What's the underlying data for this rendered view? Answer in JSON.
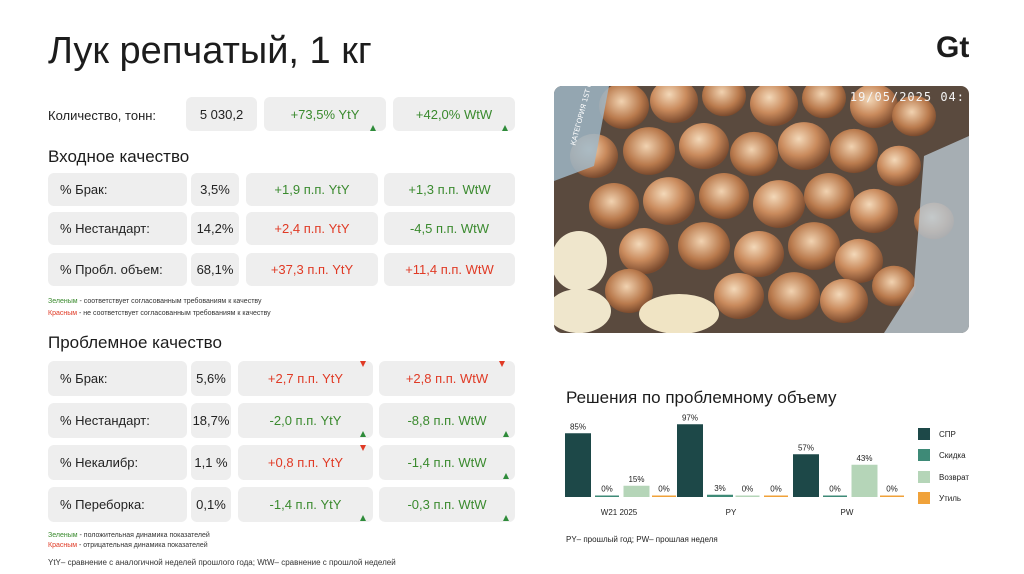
{
  "title": "Лук репчатый, 1 кг",
  "logo_text": "Gt",
  "quantity": {
    "label": "Количество, тонн:",
    "value": "5 030,2",
    "yty": "+73,5% YtY",
    "wtw": "+42,0% WtW",
    "yty_dir": "up",
    "wtw_dir": "up"
  },
  "incoming": {
    "title": "Входное качество",
    "rows": [
      {
        "label": "% Брак:",
        "value": "3,5%",
        "yty": "+1,9 п.п. YtY",
        "wtw": "+1,3 п.п. WtW",
        "yty_color": "green",
        "wtw_color": "green"
      },
      {
        "label": "% Нестандарт:",
        "value": "14,2%",
        "yty": "+2,4 п.п. YtY",
        "wtw": "-4,5 п.п. WtW",
        "yty_color": "red",
        "wtw_color": "green"
      },
      {
        "label": "% Пробл. объем:",
        "value": "68,1%",
        "yty": "+37,3 п.п. YtY",
        "wtw": "+11,4 п.п. WtW",
        "yty_color": "red",
        "wtw_color": "red"
      }
    ],
    "note_green_word": "Зеленым",
    "note_green_text": " - соответствует согласованным требованиям к качеству",
    "note_red_word": "Красным",
    "note_red_text": " - не соответствует согласованным требованиям к качеству"
  },
  "problem": {
    "title": "Проблемное качество",
    "rows": [
      {
        "label": "% Брак:",
        "value": "5,6%",
        "yty": "+2,7 п.п. YtY",
        "wtw": "+2,8 п.п. WtW",
        "yty_color": "red",
        "wtw_color": "red",
        "yty_dir": "down",
        "wtw_dir": "down"
      },
      {
        "label": "% Нестандарт:",
        "value": "18,7%",
        "yty": "-2,0 п.п. YtY",
        "wtw": "-8,8 п.п. WtW",
        "yty_color": "green",
        "wtw_color": "green",
        "yty_dir": "up",
        "wtw_dir": "up"
      },
      {
        "label": "% Некалибр:",
        "value": "1,1 %",
        "yty": "+0,8 п.п. YtY",
        "wtw": "-1,4 п.п. WtW",
        "yty_color": "red",
        "wtw_color": "green",
        "yty_dir": "down",
        "wtw_dir": "up"
      },
      {
        "label": "% Переборка:",
        "value": "0,1%",
        "yty": "-1,4 п.п. YtY",
        "wtw": "-0,3 п.п. WtW",
        "yty_color": "green",
        "wtw_color": "green",
        "yty_dir": "up",
        "wtw_dir": "up"
      }
    ],
    "note_green_word": "Зеленым",
    "note_green_text": " - положительная динамика показателей",
    "note_red_word": "Красным",
    "note_red_text": " - отрицательная динамика показателей",
    "footnote": "YtY– сравнение с аналогичной неделей прошлого года; WtW– сравнение с прошлой неделей"
  },
  "photo": {
    "timestamp": "19/05/2025 04:",
    "box_label": "КАТЕГОРИЯ 1ST CATEGORY"
  },
  "colors": {
    "green": "#3a8a2e",
    "red": "#e03a25",
    "spr": "#1d4848",
    "discount": "#3e8a77",
    "return": "#b5d5b8",
    "waste": "#f0a23a"
  },
  "chart_data": {
    "type": "bar",
    "title": "Решения по проблемному объему",
    "categories": [
      "W21 2025",
      "PY",
      "PW"
    ],
    "series": [
      {
        "name": "СПР",
        "values": [
          85,
          97,
          57
        ]
      },
      {
        "name": "Скидка",
        "values": [
          0,
          3,
          0
        ]
      },
      {
        "name": "Возврат",
        "values": [
          15,
          0,
          43
        ]
      },
      {
        "name": "Утиль",
        "values": [
          0,
          0,
          0
        ]
      }
    ],
    "value_labels": [
      [
        "85%",
        "97%",
        "57%"
      ],
      [
        "0%",
        "3%",
        "0%"
      ],
      [
        "15%",
        "0%",
        "43%"
      ],
      [
        "0%",
        "0%",
        "0%"
      ]
    ],
    "ylim": [
      0,
      100
    ],
    "legend_position": "right",
    "note": "PY– прошлый год; PW– прошлая неделя"
  }
}
